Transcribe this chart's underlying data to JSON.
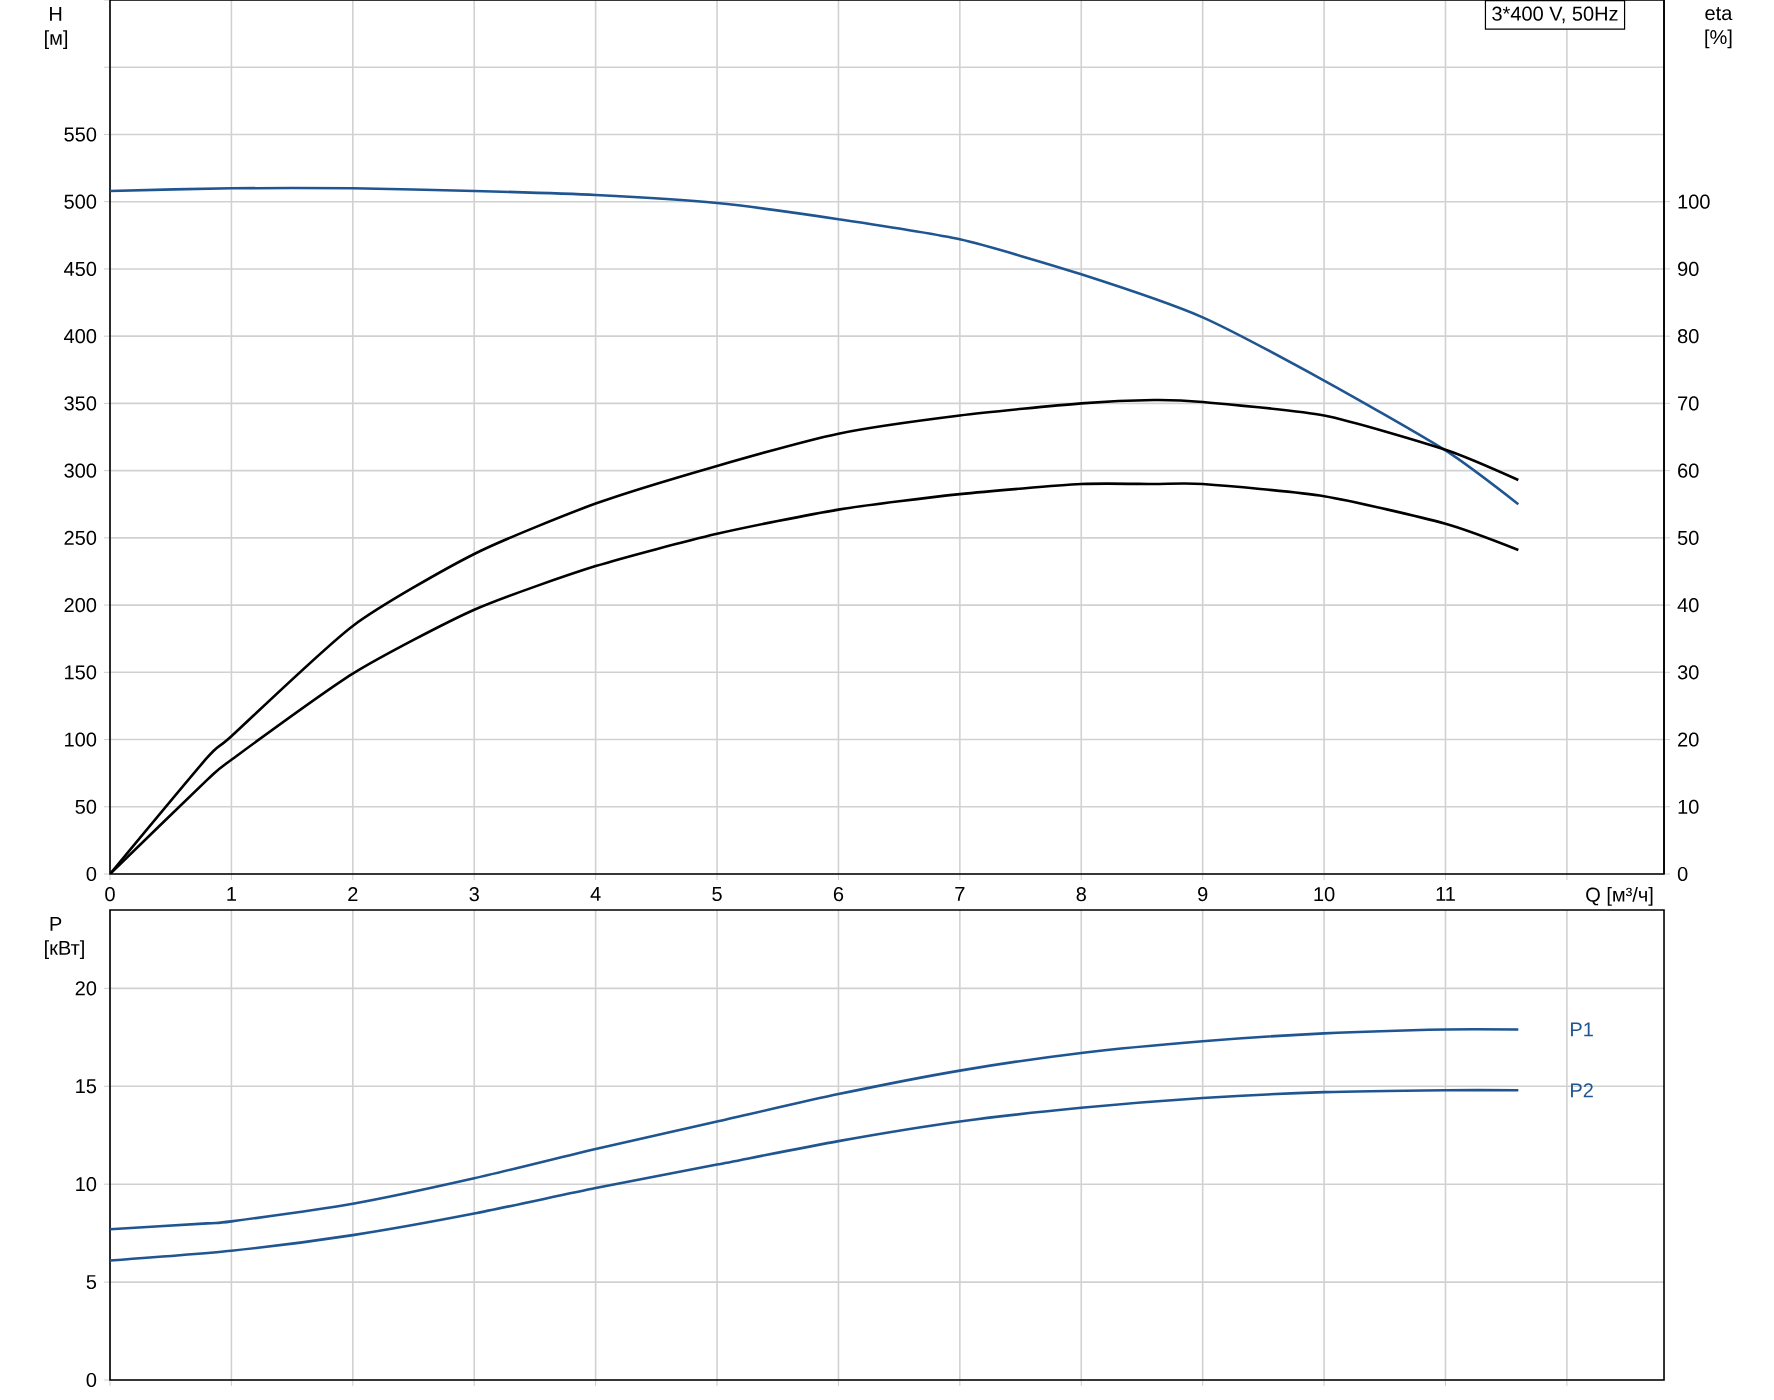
{
  "chart_data": [
    {
      "type": "line",
      "xlabel": "Q [м³/ч]",
      "ylabel": "H [м]",
      "y2label": "eta [%]",
      "annotations": [
        "3*400 V, 50Hz"
      ],
      "xlim": [
        0,
        12.8
      ],
      "xticks": [
        0,
        1,
        2,
        3,
        4,
        5,
        6,
        7,
        8,
        9,
        10,
        11,
        {
          "value": 12,
          "label": null
        }
      ],
      "ylim": [
        0,
        650
      ],
      "yticks": [
        0,
        50,
        100,
        150,
        200,
        250,
        300,
        350,
        400,
        450,
        500,
        550,
        {
          "value": 600,
          "label": null
        },
        {
          "value": 650,
          "label": null
        }
      ],
      "y2lim": [
        0,
        130
      ],
      "y2ticks": [
        0,
        10,
        20,
        30,
        40,
        50,
        60,
        70,
        80,
        90,
        100
      ],
      "grid": true,
      "series": [
        {
          "color": "#1f5591",
          "x": [
            0,
            1,
            2,
            3,
            4,
            5,
            6,
            7,
            8,
            9,
            10,
            11,
            11.6
          ],
          "values": [
            508,
            510,
            510,
            508,
            505,
            499,
            487,
            472,
            446,
            414,
            367,
            315,
            275
          ]
        },
        {
          "color": "#000000",
          "axis": "y2",
          "x": [
            0,
            0.8,
            1,
            2,
            3,
            4,
            5,
            6,
            7,
            8,
            8.6,
            9,
            10,
            11,
            11.6
          ],
          "values": [
            0,
            17.3,
            20.5,
            36.9,
            47.6,
            55.1,
            60.7,
            65.5,
            68.2,
            70,
            70.5,
            70.2,
            68.2,
            63.1,
            58.6
          ]
        },
        {
          "color": "#000000",
          "axis": "y2",
          "x": [
            0,
            0.8,
            1,
            2,
            3,
            4,
            5,
            6,
            7,
            8,
            8.6,
            9,
            10,
            11,
            11.6
          ],
          "values": [
            0,
            14,
            17,
            29.8,
            39.3,
            45.8,
            50.6,
            54.2,
            56.5,
            58,
            58,
            58,
            56.2,
            52.1,
            48.2
          ]
        }
      ]
    },
    {
      "type": "line",
      "ylabel": "P [кВт]",
      "xlim": [
        0,
        12.8
      ],
      "xticks": [
        0,
        1,
        2,
        3,
        4,
        5,
        6,
        7,
        8,
        9,
        10,
        11,
        {
          "value": 12,
          "label": null
        }
      ],
      "ylim": [
        0,
        24
      ],
      "yticks": [
        0,
        5,
        10,
        15,
        20
      ],
      "tick_labels": "y",
      "grid": true,
      "series": [
        {
          "name": "P1",
          "color": "#1f5591",
          "x": [
            0,
            0.8,
            1,
            2,
            3,
            4,
            5,
            6,
            7,
            8,
            9,
            10,
            11,
            11.6
          ],
          "values": [
            7.7,
            8,
            8.1,
            9,
            10.3,
            11.8,
            13.2,
            14.6,
            15.8,
            16.7,
            17.3,
            17.7,
            17.9,
            17.9
          ]
        },
        {
          "name": "P2",
          "color": "#1f5591",
          "x": [
            0,
            1,
            2,
            3,
            4,
            5,
            6,
            7,
            8,
            9,
            10,
            11,
            11.6
          ],
          "values": [
            6.1,
            6.6,
            7.4,
            8.5,
            9.8,
            11,
            12.2,
            13.2,
            13.9,
            14.4,
            14.7,
            14.8,
            14.8
          ]
        }
      ]
    }
  ]
}
